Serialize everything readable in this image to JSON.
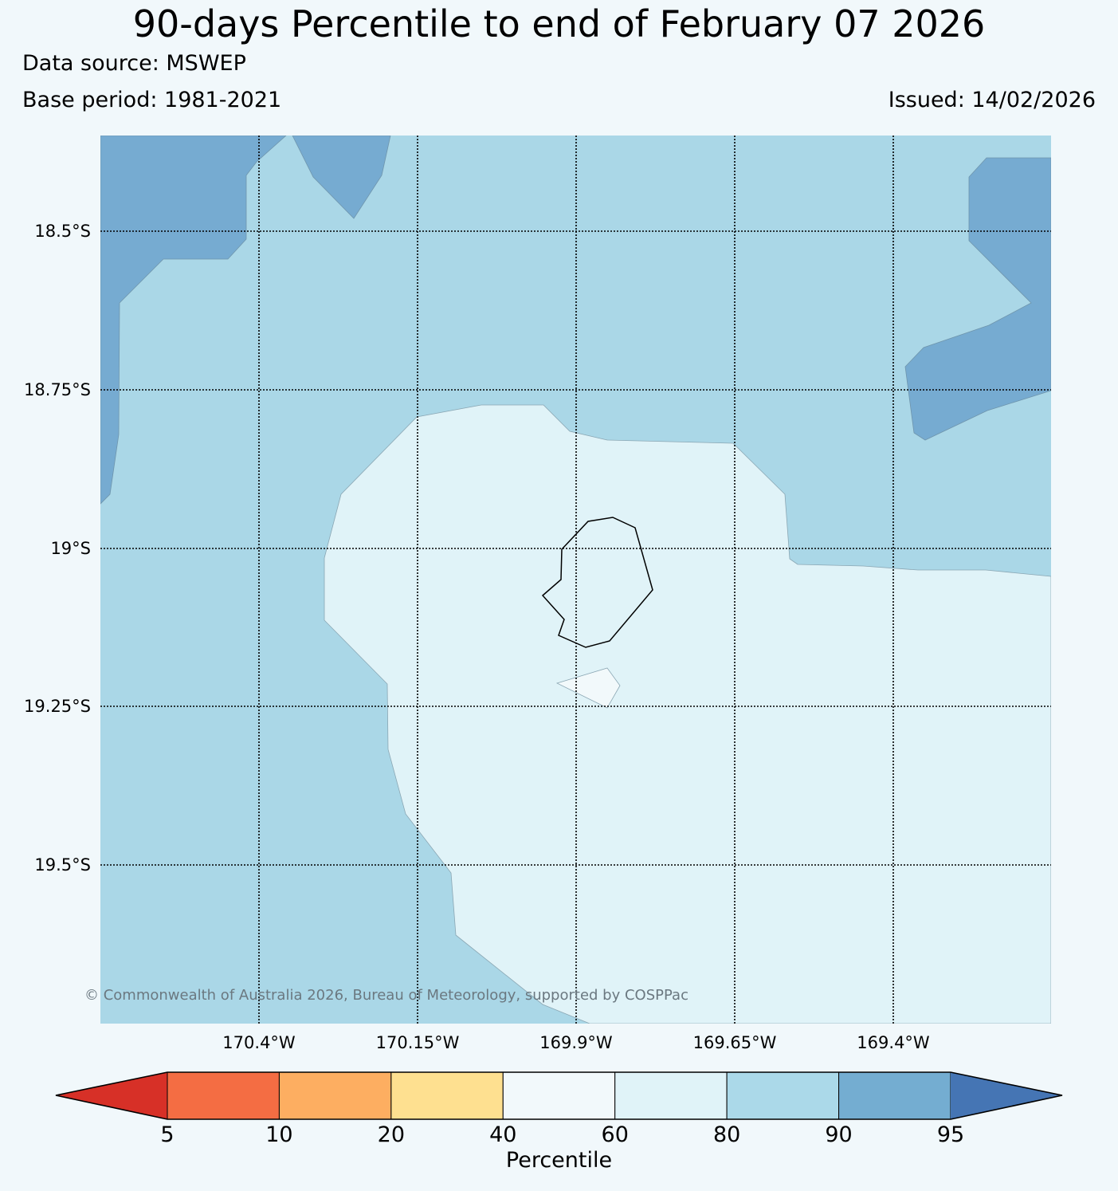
{
  "header": {
    "title": "90-days Percentile to end of February 07 2026",
    "data_source": "Data source: MSWEP",
    "base_period": "Base period: 1981-2021",
    "issued": "Issued: 14/02/2026"
  },
  "map": {
    "lat_labels": [
      "18.5°S",
      "18.75°S",
      "19°S",
      "19.25°S",
      "19.5°S"
    ],
    "lon_labels": [
      "170.4°W",
      "170.15°W",
      "169.9°W",
      "169.65°W",
      "169.4°W"
    ],
    "copyright": "© Commonwealth of Australia 2026, Bureau of Meteorology, supported by COSPPac",
    "colors": {
      "band_90_95": "#76abd1",
      "band_80_90": "#aad7e7",
      "band_60_80": "#e0f3f8",
      "band_40_60": "#f2f9fb",
      "coast": "#000000"
    }
  },
  "colorbar": {
    "ticks": [
      "5",
      "10",
      "20",
      "40",
      "60",
      "80",
      "90",
      "95"
    ],
    "label": "Percentile",
    "colors": [
      "#d73027",
      "#f46d43",
      "#fdae61",
      "#fee090",
      "#f2f9fb",
      "#e0f3f8",
      "#abd9e9",
      "#74add1",
      "#4575b4"
    ]
  }
}
